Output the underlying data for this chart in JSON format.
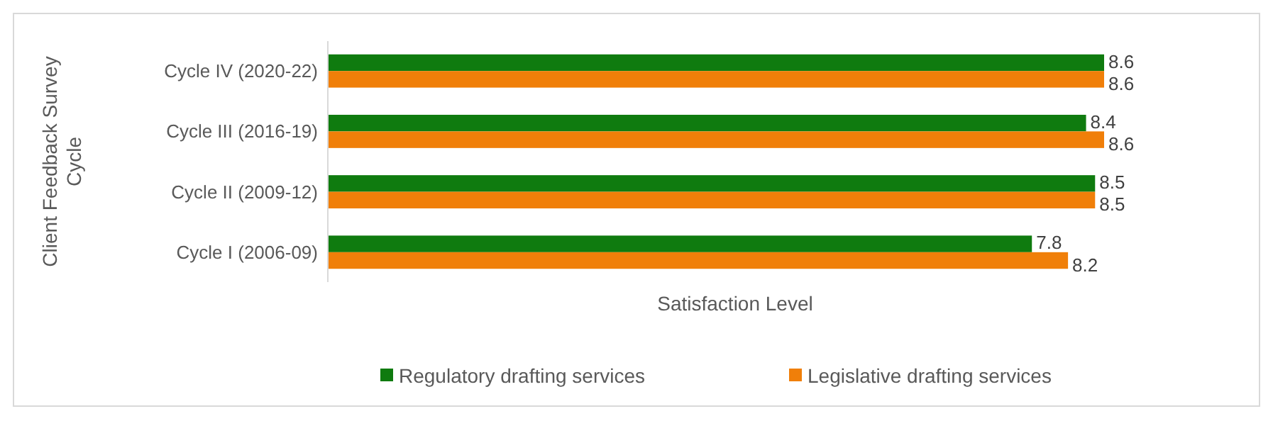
{
  "chart_data": {
    "type": "bar",
    "orientation": "horizontal",
    "xlabel": "Satisfaction Level",
    "ylabel": "Client Feedback Survey Cycle",
    "categories": [
      "Cycle IV (2020-22)",
      "Cycle III (2016-19)",
      "Cycle II (2009-12)",
      "Cycle I (2006-09)"
    ],
    "series": [
      {
        "name": "Regulatory drafting services",
        "color": "#0f7b0f",
        "values": [
          8.6,
          8.4,
          8.5,
          7.8
        ]
      },
      {
        "name": "Legislative drafting services",
        "color": "#f07f09",
        "values": [
          8.6,
          8.6,
          8.5,
          8.2
        ]
      }
    ],
    "data_labels": true,
    "legend": "bottom",
    "tick_labels": "y"
  }
}
